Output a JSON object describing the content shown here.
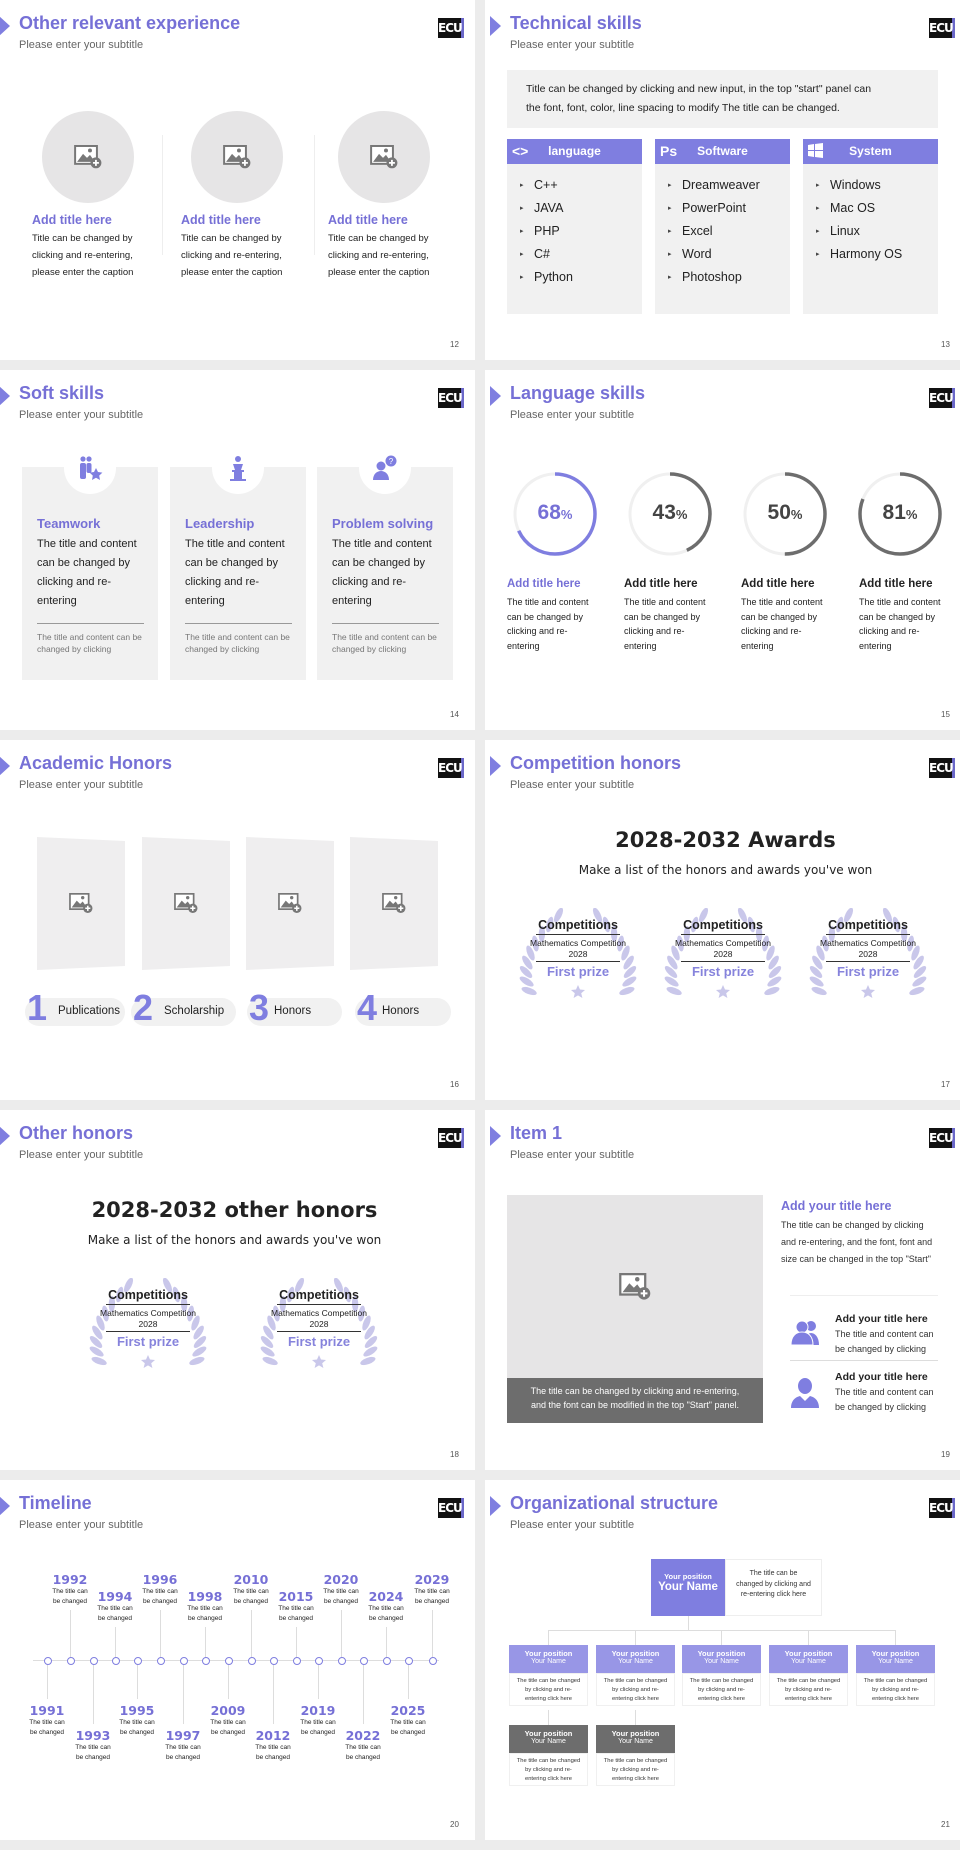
{
  "colors": {
    "accent": "#7f7ee0",
    "title": "#7670d6",
    "panel": "#f1f1f1",
    "dark_gray": "#6d6d6d",
    "laurel": "#c9c7ea"
  },
  "logo_text": "ECU",
  "slides": [
    {
      "title": "Other relevant experience",
      "subtitle": "Please enter your subtitle",
      "page": "12",
      "items": [
        {
          "title": "Add title here",
          "lines": [
            "Title can be changed by",
            "clicking and re-entering,",
            "please enter the caption"
          ]
        },
        {
          "title": "Add title here",
          "lines": [
            "Title can be changed by",
            "clicking and re-entering,",
            "please enter the caption"
          ]
        },
        {
          "title": "Add title here",
          "lines": [
            "Title can be changed by",
            "clicking and re-entering,",
            "please enter the caption"
          ]
        }
      ]
    },
    {
      "title": "Technical skills",
      "subtitle": "Please enter your subtitle",
      "page": "13",
      "intro": [
        "Title can be changed by clicking and new input, in the top \"start\" panel can",
        "the font, font, color, line spacing to modify The title can be changed."
      ],
      "columns": [
        {
          "icon": "code-icon",
          "header": "language",
          "items": [
            "C++",
            "JAVA",
            "PHP",
            "C#",
            "Python"
          ]
        },
        {
          "icon": "photoshop-icon",
          "header": "Software",
          "items": [
            "Dreamweaver",
            "PowerPoint",
            "Excel",
            "Word",
            "Photoshop"
          ]
        },
        {
          "icon": "windows-icon",
          "header": "System",
          "items": [
            "Windows",
            "Mac OS",
            "Linux",
            "Harmony OS"
          ]
        }
      ]
    },
    {
      "title": "Soft skills",
      "subtitle": "Please enter your subtitle",
      "page": "14",
      "cards": [
        {
          "icon": "teamwork-icon",
          "title": "Teamwork",
          "lines": [
            "The title and content",
            "can be changed by",
            "clicking and re-",
            "entering"
          ],
          "note": [
            "The title and content can be",
            "changed by clicking"
          ]
        },
        {
          "icon": "podium-speaker-icon",
          "title": "Leadership",
          "lines": [
            "The title and content",
            "can be changed by",
            "clicking and re-",
            "entering"
          ],
          "note": [
            "The title and content can be",
            "changed by clicking"
          ]
        },
        {
          "icon": "question-person-icon",
          "title": "Problem solving",
          "lines": [
            "The title and content",
            "can be changed by",
            "clicking and re-",
            "entering"
          ],
          "note": [
            "The title and content can be",
            "changed by clicking"
          ]
        }
      ]
    },
    {
      "title": "Language skills",
      "subtitle": "Please enter your subtitle",
      "page": "15",
      "rings": [
        {
          "value": 68,
          "label": "68",
          "unit": "%",
          "title": "Add title here",
          "highlight": true,
          "lines": [
            "The title and content",
            "can be changed by",
            "clicking and re-",
            "entering"
          ]
        },
        {
          "value": 43,
          "label": "43",
          "unit": "%",
          "title": "Add title here",
          "highlight": false,
          "lines": [
            "The title and content",
            "can be changed by",
            "clicking and re-",
            "entering"
          ]
        },
        {
          "value": 50,
          "label": "50",
          "unit": "%",
          "title": "Add title here",
          "highlight": false,
          "lines": [
            "The title and content",
            "can be changed by",
            "clicking and re-",
            "entering"
          ]
        },
        {
          "value": 81,
          "label": "81",
          "unit": "%",
          "title": "Add title here",
          "highlight": false,
          "lines": [
            "The title and content",
            "can be changed by",
            "clicking and re-",
            "entering"
          ]
        }
      ]
    },
    {
      "title": "Academic Honors",
      "subtitle": "Please enter your subtitle",
      "page": "16",
      "items": [
        {
          "num": "1",
          "label": "Publications"
        },
        {
          "num": "2",
          "label": "Scholarship"
        },
        {
          "num": "3",
          "label": "Honors"
        },
        {
          "num": "4",
          "label": "Honors"
        }
      ]
    },
    {
      "title": "Competition honors",
      "subtitle": "Please enter your subtitle",
      "page": "17",
      "heading": "2028-2032 Awards",
      "sub": "Make a list of the honors and awards you've won",
      "awards": [
        {
          "name": "Competitions",
          "event": "Mathematics Competition",
          "year": "2028",
          "prize": "First prize"
        },
        {
          "name": "Competitions",
          "event": "Mathematics Competition",
          "year": "2028",
          "prize": "First prize"
        },
        {
          "name": "Competitions",
          "event": "Mathematics Competition",
          "year": "2028",
          "prize": "First prize"
        }
      ]
    },
    {
      "title": "Other honors",
      "subtitle": "Please enter your subtitle",
      "page": "18",
      "heading": "2028-2032 other honors",
      "sub": "Make a list of the honors and awards you've won",
      "awards": [
        {
          "name": "Competitions",
          "event": "Mathematics Competition",
          "year": "2028",
          "prize": "First prize"
        },
        {
          "name": "Competitions",
          "event": "Mathematics Competition",
          "year": "2028",
          "prize": "First prize"
        }
      ]
    },
    {
      "title": "Item 1",
      "subtitle": "Please enter your subtitle",
      "page": "19",
      "caption": [
        "The title can be changed by clicking and re-entering,",
        "and the font can be modified in the top \"Start\" panel."
      ],
      "main_title": "Add your title here",
      "main_lines": [
        "The title can be changed by clicking",
        "and re-entering, and the font, font and",
        "size can be changed in the top \"Start\""
      ],
      "rows": [
        {
          "icon": "users-icon",
          "title": "Add your title here",
          "lines": [
            "The title and content can",
            "be changed by clicking"
          ]
        },
        {
          "icon": "user-icon",
          "title": "Add your title here",
          "lines": [
            "The title and content can",
            "be changed by clicking"
          ]
        }
      ]
    },
    {
      "title": "Timeline",
      "subtitle": "Please enter your subtitle",
      "page": "20",
      "events": [
        {
          "year": "1991",
          "lines": [
            "The title can",
            "be changed"
          ]
        },
        {
          "year": "1992",
          "lines": [
            "The title can",
            "be changed"
          ]
        },
        {
          "year": "1993",
          "lines": [
            "The title can",
            "be changed"
          ]
        },
        {
          "year": "1994",
          "lines": [
            "The title can",
            "be changed"
          ]
        },
        {
          "year": "1995",
          "lines": [
            "The title can",
            "be changed"
          ]
        },
        {
          "year": "1996",
          "lines": [
            "The title can",
            "be changed"
          ]
        },
        {
          "year": "1997",
          "lines": [
            "The title can",
            "be changed"
          ]
        },
        {
          "year": "1998",
          "lines": [
            "The title can",
            "be changed"
          ]
        },
        {
          "year": "2009",
          "lines": [
            "The title can",
            "be changed"
          ]
        },
        {
          "year": "2010",
          "lines": [
            "The title can",
            "be changed"
          ]
        },
        {
          "year": "2012",
          "lines": [
            "The title can",
            "be changed"
          ]
        },
        {
          "year": "2015",
          "lines": [
            "The title can",
            "be changed"
          ]
        },
        {
          "year": "2019",
          "lines": [
            "The title can",
            "be changed"
          ]
        },
        {
          "year": "2020",
          "lines": [
            "The title can",
            "be changed"
          ]
        },
        {
          "year": "2022",
          "lines": [
            "The title can",
            "be changed"
          ]
        },
        {
          "year": "2024",
          "lines": [
            "The title can",
            "be changed"
          ]
        },
        {
          "year": "2025",
          "lines": [
            "The title can",
            "be changed"
          ]
        },
        {
          "year": "2029",
          "lines": [
            "The title can",
            "be changed"
          ]
        }
      ]
    },
    {
      "title": "Organizational structure",
      "subtitle": "Please enter your subtitle",
      "page": "21",
      "top": {
        "position": "Your position",
        "name": "Your Name",
        "lines": [
          "The title can be",
          "changed by clicking and",
          "re-entering click here"
        ]
      },
      "level2": [
        {
          "position": "Your position",
          "name": "Your Name",
          "lines": [
            "The title can be changed",
            "by clicking and re-",
            "entering click here"
          ]
        },
        {
          "position": "Your position",
          "name": "Your Name",
          "lines": [
            "The title can be changed",
            "by clicking and re-",
            "entering click here"
          ]
        },
        {
          "position": "Your position",
          "name": "Your Name",
          "lines": [
            "The title can be changed",
            "by clicking and re-",
            "entering click here"
          ]
        },
        {
          "position": "Your position",
          "name": "Your Name",
          "lines": [
            "The title can be changed",
            "by clicking and re-",
            "entering click here"
          ]
        },
        {
          "position": "Your position",
          "name": "Your Name",
          "lines": [
            "The title can be changed",
            "by clicking and re-",
            "entering click here"
          ]
        }
      ],
      "level3": [
        {
          "position": "Your position",
          "name": "Your Name",
          "lines": [
            "The title can be changed",
            "by clicking and re-",
            "entering click here"
          ]
        },
        {
          "position": "Your position",
          "name": "Your Name",
          "lines": [
            "The title can be changed",
            "by clicking and re-",
            "entering click here"
          ]
        }
      ]
    }
  ]
}
